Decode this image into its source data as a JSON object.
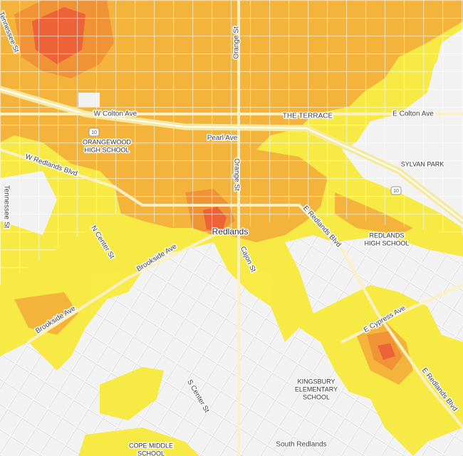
{
  "map": {
    "streets": [
      "Tennessee St",
      "Orange St",
      "W Colton Ave",
      "THE TERRACE",
      "E Colton Ave",
      "Pearl Ave",
      "W Redlands Blvd",
      "Orange St",
      "Tennessee St",
      "E Redlands Blvd",
      "N Center St",
      "Cajon St",
      "Brookside Ave",
      "Brookside Ave",
      "E Cypress Ave",
      "S Center St",
      "E Redlands Blvd"
    ],
    "highways": [
      "10",
      "10"
    ],
    "places": [
      "Redlands",
      "South Redlands",
      "SYLVAN PARK"
    ],
    "schools": [
      [
        "ORANGEWOOD",
        "HIGH SCHOOL"
      ],
      [
        "REDLANDS",
        "HIGH SCHOOL"
      ],
      [
        "KINGSBURY",
        "ELEMENTARY",
        "SCHOOL"
      ],
      [
        "COPE MIDDLE",
        "SCHOOL"
      ]
    ]
  }
}
